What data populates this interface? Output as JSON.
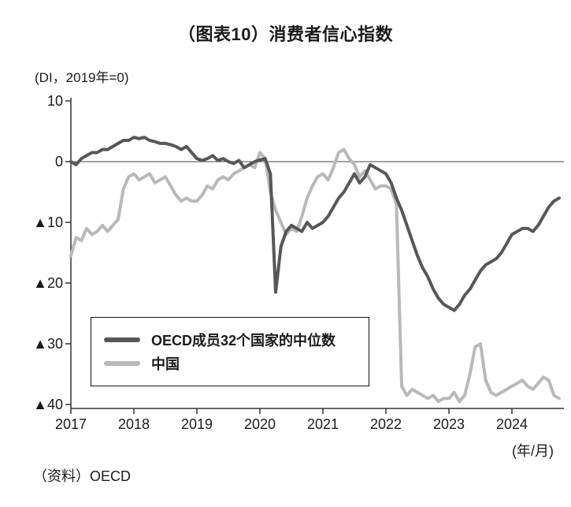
{
  "title": "（图表10）消费者信心指数",
  "unit_label": "(DI，2019年=0)",
  "x_axis_label": "(年/月)",
  "source": "（资料）OECD",
  "colors": {
    "oecd_line": "#575757",
    "china_line": "#b9b9b9",
    "axis": "#333333",
    "zero_line": "#444444",
    "text": "#1a1a1a"
  },
  "legend": [
    {
      "label": "OECD成员32个国家的中位数",
      "color": "#575757"
    },
    {
      "label": "中国",
      "color": "#b9b9b9"
    }
  ],
  "chart_data": {
    "type": "line",
    "title": "（图表10）消费者信心指数",
    "ylabel": "(DI，2019年=0)",
    "xlabel": "(年/月)",
    "ylim": [
      -42,
      10
    ],
    "yticks": [
      10,
      0,
      -10,
      -20,
      -30,
      -40
    ],
    "ytick_labels": [
      "10",
      "0",
      "▲10",
      "▲20",
      "▲30",
      "▲40"
    ],
    "xticks": [
      2017,
      2018,
      2019,
      2020,
      2021,
      2022,
      2023,
      2024
    ],
    "x_start": "2017-01",
    "frequency": "monthly",
    "grid": false,
    "zero_line": true,
    "legend_position": "inside-bottom-left",
    "series": [
      {
        "name": "OECD成员32个国家的中位数",
        "color": "#575757",
        "values": [
          0,
          -0.5,
          0.5,
          1,
          1.5,
          1.5,
          2,
          2,
          2.5,
          3,
          3.5,
          3.5,
          4,
          3.8,
          4,
          3.5,
          3.3,
          3,
          3,
          2.8,
          2.5,
          2,
          2.5,
          1.5,
          0.5,
          0.2,
          0.5,
          1,
          0.2,
          0.5,
          0,
          -0.3,
          0.2,
          -1,
          -0.5,
          0,
          0.3,
          0.5,
          -2,
          -21.5,
          -14,
          -11.5,
          -10.5,
          -11,
          -11.5,
          -10,
          -11,
          -10.5,
          -10,
          -9,
          -7.5,
          -6,
          -5,
          -3.5,
          -2,
          -3.5,
          -2.5,
          -0.5,
          -1,
          -1.5,
          -2,
          -3.5,
          -6,
          -8,
          -10.5,
          -13,
          -15.5,
          -17.5,
          -19,
          -21,
          -22.5,
          -23.5,
          -24,
          -24.5,
          -23.5,
          -22,
          -21,
          -19.5,
          -18,
          -17,
          -16.5,
          -16,
          -15,
          -13.5,
          -12,
          -11.5,
          -11,
          -11,
          -11.5,
          -10.5,
          -9,
          -7.5,
          -6.5,
          -6
        ]
      },
      {
        "name": "中国",
        "color": "#b9b9b9",
        "values": [
          -15.5,
          -12.5,
          -13,
          -11,
          -12,
          -11.5,
          -10.5,
          -11.5,
          -10.5,
          -9.5,
          -4.5,
          -2.5,
          -2,
          -3,
          -2.5,
          -2,
          -3.5,
          -3,
          -2.5,
          -4,
          -5.5,
          -6.5,
          -6,
          -6.5,
          -6.5,
          -5.5,
          -4,
          -4.5,
          -3,
          -2.5,
          -3,
          -2,
          -1.5,
          -1,
          -0.5,
          -1,
          1.5,
          0.5,
          -5,
          -8,
          -10,
          -12,
          -11,
          -11.5,
          -9,
          -6,
          -4,
          -2.5,
          -2,
          -3,
          -1,
          1.5,
          2,
          0.5,
          -0.5,
          -2.5,
          -1.5,
          -3,
          -4.5,
          -4,
          -4,
          -4.5,
          -7,
          -37,
          -38.5,
          -37.5,
          -38,
          -38.5,
          -39,
          -38.5,
          -39.5,
          -39,
          -39,
          -38,
          -39.5,
          -38.5,
          -35,
          -30.5,
          -30,
          -36,
          -38,
          -38.5,
          -38,
          -37.5,
          -37,
          -36.5,
          -36,
          -37,
          -37.5,
          -36.5,
          -35.5,
          -36,
          -38.5,
          -39
        ]
      }
    ]
  }
}
